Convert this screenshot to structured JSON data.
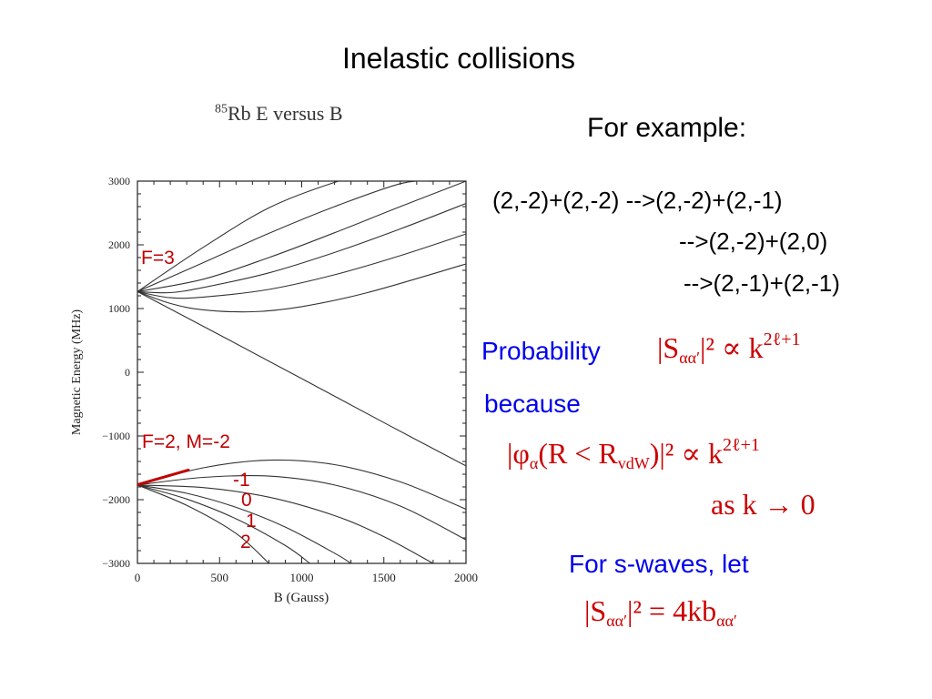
{
  "slide": {
    "title": "Inelastic collisions",
    "for_example": "For example:",
    "reactions": [
      "(2,-2)+(2,-2) -->(2,-2)+(2,-1)",
      "-->(2,-2)+(2,0)",
      "-->(2,-1)+(2,-1)"
    ],
    "probability": "Probability",
    "because": "because",
    "for_swaves": "For s-waves, let",
    "eq1": {
      "lhs_base": "|S",
      "sub": "αα′",
      "rhs": "|² ∝ k",
      "exp": "2ℓ+1"
    },
    "eq2": {
      "lhs": "|φ",
      "sub1": "α",
      "mid": "(R < R",
      "sub2": "vdW",
      "rhs": ")|² ∝ k",
      "exp": "2ℓ+1"
    },
    "eq3": {
      "text": "as k → 0"
    },
    "eq4": {
      "lhs_base": "|S",
      "sub": "αα′",
      "rhs": "|² = 4kb",
      "sub2": "αα′"
    },
    "colors": {
      "blue_text": "#0000ee",
      "red_math": "#cc0000",
      "curve": "#333333",
      "highlight": "#c00000"
    }
  },
  "chart_data": {
    "type": "line",
    "title_sup": "85",
    "title": "Rb E versus B",
    "xlabel": "B (Gauss)",
    "ylabel": "Magnetic Energy (MHz)",
    "xlim": [
      0,
      2000
    ],
    "ylim": [
      -3000,
      3000
    ],
    "x_ticks": [
      "0",
      "500",
      "1000",
      "1500",
      "2000"
    ],
    "y_ticks": [
      "3000",
      "2000",
      "1000",
      "0",
      "−1000",
      "−2000",
      "−3000"
    ],
    "x_tick_values": [
      0,
      500,
      1000,
      1500,
      2000
    ],
    "y_tick_values": [
      3000,
      2000,
      1000,
      0,
      -1000,
      -2000,
      -3000
    ],
    "annotations": [
      "F=3",
      "F=2, M=-2",
      "-1",
      "0",
      "1",
      "2"
    ],
    "series": [
      {
        "x": [
          0,
          400,
          800,
          1200,
          1300
        ],
        "y": [
          1265,
          1960,
          2580,
          2980,
          3000
        ]
      },
      {
        "x": [
          0,
          400,
          800,
          1200,
          1600,
          1800
        ],
        "y": [
          1265,
          1720,
          2180,
          2600,
          2960,
          3000
        ]
      },
      {
        "x": [
          0,
          400,
          800,
          1200,
          1600,
          2000
        ],
        "y": [
          1265,
          1460,
          1800,
          2190,
          2600,
          3000
        ]
      },
      {
        "x": [
          0,
          200,
          400,
          800,
          1200,
          1600,
          2000
        ],
        "y": [
          1265,
          1250,
          1330,
          1560,
          1880,
          2250,
          2650
        ]
      },
      {
        "x": [
          0,
          200,
          400,
          800,
          1200,
          1600,
          2000
        ],
        "y": [
          1265,
          1170,
          1180,
          1300,
          1530,
          1830,
          2170
        ]
      },
      {
        "x": [
          0,
          200,
          400,
          700,
          1000,
          1400,
          2000
        ],
        "y": [
          1265,
          1080,
          980,
          950,
          1030,
          1250,
          1700
        ]
      },
      {
        "x": [
          0,
          500,
          1000,
          1500,
          2000
        ],
        "y": [
          1265,
          585,
          -100,
          -790,
          -1470
        ]
      },
      {
        "x": [
          0,
          400,
          800,
          1200,
          1600,
          2000
        ],
        "y": [
          -1770,
          -1500,
          -1380,
          -1450,
          -1720,
          -2150
        ]
      },
      {
        "x": [
          0,
          400,
          800,
          1200,
          1600,
          2000
        ],
        "y": [
          -1770,
          -1650,
          -1630,
          -1770,
          -2100,
          -2630
        ]
      },
      {
        "x": [
          0,
          400,
          800,
          1200,
          1500,
          1800
        ],
        "y": [
          -1770,
          -1810,
          -1960,
          -2250,
          -2580,
          -3000
        ]
      },
      {
        "x": [
          0,
          300,
          600,
          900,
          1200,
          1300
        ],
        "y": [
          -1770,
          -1900,
          -2120,
          -2430,
          -2840,
          -3000
        ]
      },
      {
        "x": [
          0,
          300,
          600,
          900,
          1050
        ],
        "y": [
          -1770,
          -1990,
          -2300,
          -2720,
          -3000
        ]
      },
      {
        "x": [
          0,
          300,
          600,
          800
        ],
        "y": [
          -1770,
          -2090,
          -2530,
          -3000
        ]
      }
    ],
    "highlight_segment": {
      "x": [
        0,
        310
      ],
      "y": [
        -1765,
        -1535
      ]
    }
  }
}
